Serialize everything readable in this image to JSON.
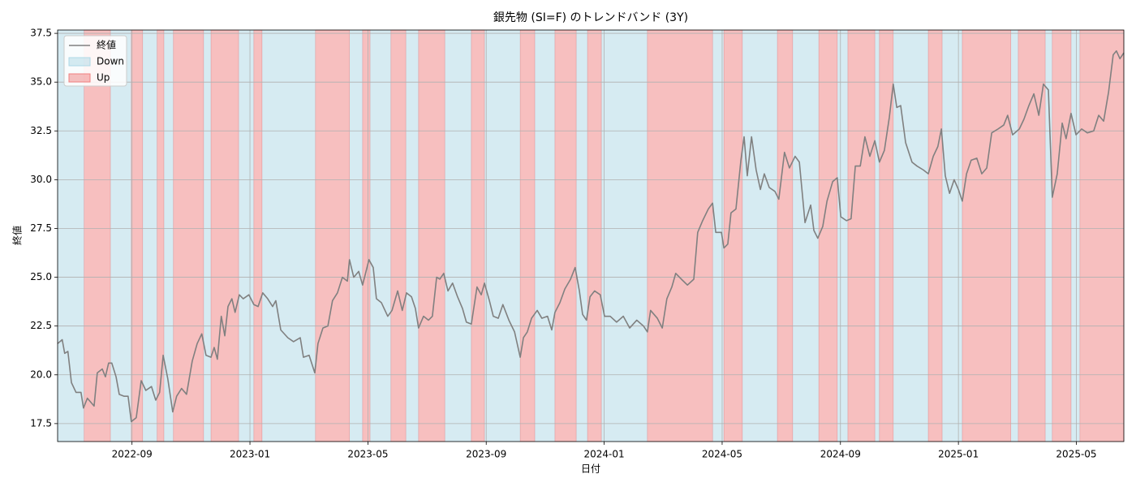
{
  "chart_data": {
    "type": "line",
    "title": "銀先物 (SI=F) のトレンドバンド (3Y)",
    "xlabel": "日付",
    "ylabel": "終値",
    "xlim": [
      2022.457,
      2025.467
    ],
    "ylim": [
      16.58,
      37.67
    ],
    "xticks": [
      {
        "value": 2022.667,
        "label": "2022-09"
      },
      {
        "value": 2023.0,
        "label": "2023-01"
      },
      {
        "value": 2023.333,
        "label": "2023-05"
      },
      {
        "value": 2023.667,
        "label": "2023-09"
      },
      {
        "value": 2024.0,
        "label": "2024-01"
      },
      {
        "value": 2024.333,
        "label": "2024-05"
      },
      {
        "value": 2024.667,
        "label": "2024-09"
      },
      {
        "value": 2025.0,
        "label": "2025-01"
      },
      {
        "value": 2025.333,
        "label": "2025-05"
      }
    ],
    "yticks": [
      {
        "value": 17.5,
        "label": "17.5"
      },
      {
        "value": 20,
        "label": "20.0"
      },
      {
        "value": 22.5,
        "label": "22.5"
      },
      {
        "value": 25,
        "label": "25.0"
      },
      {
        "value": 27.5,
        "label": "27.5"
      },
      {
        "value": 30,
        "label": "30.0"
      },
      {
        "value": 32.5,
        "label": "32.5"
      },
      {
        "value": 35,
        "label": "35.0"
      },
      {
        "value": 37.5,
        "label": "37.5"
      }
    ],
    "grid": true,
    "legend": "upper left",
    "series": [
      {
        "name": "終値",
        "color": "#808080",
        "x": [
          2022.457,
          2022.47,
          2022.477,
          2022.486,
          2022.496,
          2022.509,
          2022.523,
          2022.53,
          2022.541,
          2022.56,
          2022.569,
          2022.583,
          2022.592,
          2022.601,
          2022.61,
          2022.622,
          2022.631,
          2022.645,
          2022.656,
          2022.665,
          2022.679,
          2022.693,
          2022.706,
          2022.722,
          2022.734,
          2022.745,
          2022.755,
          2022.768,
          2022.782,
          2022.793,
          2022.807,
          2022.821,
          2022.837,
          2022.851,
          2022.864,
          2022.876,
          2022.89,
          2022.899,
          2022.908,
          2022.919,
          2022.929,
          2022.938,
          2022.949,
          2022.958,
          2022.97,
          2022.981,
          2022.997,
          2023.011,
          2023.023,
          2023.036,
          2023.05,
          2023.064,
          2023.073,
          2023.087,
          2023.107,
          2023.123,
          2023.142,
          2023.151,
          2023.167,
          2023.183,
          2023.192,
          2023.206,
          2023.22,
          2023.233,
          2023.247,
          2023.261,
          2023.275,
          2023.281,
          2023.293,
          2023.307,
          2023.318,
          2023.336,
          2023.348,
          2023.357,
          2023.371,
          2023.389,
          2023.401,
          2023.417,
          2023.43,
          2023.442,
          2023.456,
          2023.467,
          2023.476,
          2023.49,
          2023.504,
          2023.515,
          2023.527,
          2023.536,
          2023.547,
          2023.559,
          2023.572,
          2023.586,
          2023.6,
          2023.611,
          2023.625,
          2023.641,
          2023.653,
          2023.662,
          2023.676,
          2023.687,
          2023.701,
          2023.714,
          2023.731,
          2023.747,
          2023.763,
          2023.772,
          2023.783,
          2023.795,
          2023.811,
          2023.824,
          2023.84,
          2023.852,
          2023.861,
          2023.875,
          2023.889,
          2023.905,
          2023.918,
          2023.93,
          2023.939,
          2023.95,
          2023.96,
          2023.973,
          2023.989,
          2024.001,
          2024.017,
          2024.035,
          2024.054,
          2024.072,
          2024.092,
          2024.111,
          2024.122,
          2024.131,
          2024.15,
          2024.164,
          2024.177,
          2024.191,
          2024.202,
          2024.218,
          2024.235,
          2024.253,
          2024.264,
          2024.278,
          2024.294,
          2024.306,
          2024.315,
          2024.331,
          2024.338,
          2024.349,
          2024.358,
          2024.372,
          2024.386,
          2024.395,
          2024.404,
          2024.416,
          2024.429,
          2024.441,
          2024.452,
          2024.466,
          2024.482,
          2024.493,
          2024.509,
          2024.523,
          2024.539,
          2024.551,
          2024.567,
          2024.583,
          2024.592,
          2024.603,
          2024.617,
          2024.629,
          2024.645,
          2024.658,
          2024.668,
          2024.684,
          2024.697,
          2024.709,
          2024.723,
          2024.736,
          2024.75,
          2024.764,
          2024.777,
          2024.791,
          2024.805,
          2024.816,
          2024.826,
          2024.837,
          2024.851,
          2024.869,
          2024.883,
          2024.901,
          2024.915,
          2024.929,
          2024.942,
          2024.952,
          2024.963,
          2024.975,
          2024.988,
          2025.0,
          2025.011,
          2025.023,
          2025.036,
          2025.052,
          2025.066,
          2025.08,
          2025.094,
          2025.112,
          2025.128,
          2025.139,
          2025.153,
          2025.172,
          2025.185,
          2025.199,
          2025.213,
          2025.227,
          2025.24,
          2025.254,
          2025.265,
          2025.279,
          2025.293,
          2025.304,
          2025.318,
          2025.332,
          2025.348,
          2025.364,
          2025.382,
          2025.396,
          2025.41,
          2025.424,
          2025.437,
          2025.446,
          2025.456,
          2025.467
        ],
        "values": [
          21.6,
          21.8,
          21.1,
          21.2,
          19.6,
          19.1,
          19.1,
          18.3,
          18.8,
          18.4,
          20.1,
          20.3,
          19.9,
          20.6,
          20.6,
          19.9,
          19.0,
          18.9,
          18.9,
          17.6,
          17.8,
          19.7,
          19.2,
          19.4,
          18.7,
          19.1,
          21.0,
          19.8,
          18.1,
          18.9,
          19.3,
          19.0,
          20.7,
          21.6,
          22.1,
          21.0,
          20.9,
          21.4,
          20.8,
          23.0,
          22.0,
          23.5,
          23.9,
          23.2,
          24.1,
          23.9,
          24.1,
          23.6,
          23.5,
          24.2,
          23.9,
          23.5,
          23.8,
          22.3,
          21.9,
          21.7,
          21.9,
          20.9,
          21.0,
          20.1,
          21.6,
          22.4,
          22.5,
          23.8,
          24.2,
          25.0,
          24.8,
          25.9,
          25.0,
          25.3,
          24.6,
          25.9,
          25.5,
          23.9,
          23.7,
          23.0,
          23.3,
          24.3,
          23.3,
          24.2,
          24.0,
          23.4,
          22.4,
          23.0,
          22.8,
          23.0,
          25.0,
          24.9,
          25.2,
          24.3,
          24.7,
          24.0,
          23.4,
          22.7,
          22.6,
          24.5,
          24.1,
          24.7,
          23.8,
          23.0,
          22.9,
          23.6,
          22.8,
          22.2,
          20.9,
          21.9,
          22.2,
          22.9,
          23.3,
          22.9,
          23.0,
          22.3,
          23.2,
          23.7,
          24.4,
          24.9,
          25.5,
          24.3,
          23.1,
          22.8,
          24.0,
          24.3,
          24.1,
          23.0,
          23.0,
          22.7,
          23.0,
          22.4,
          22.8,
          22.5,
          22.2,
          23.3,
          22.9,
          22.4,
          23.9,
          24.5,
          25.2,
          24.9,
          24.6,
          24.9,
          27.3,
          27.9,
          28.5,
          28.8,
          27.3,
          27.3,
          26.5,
          26.7,
          28.3,
          28.5,
          31.0,
          32.2,
          30.2,
          32.2,
          30.5,
          29.5,
          30.3,
          29.6,
          29.4,
          29.0,
          31.4,
          30.6,
          31.2,
          30.9,
          27.8,
          28.7,
          27.4,
          27.0,
          27.6,
          28.9,
          29.9,
          30.1,
          28.1,
          27.9,
          28.0,
          30.7,
          30.7,
          32.2,
          31.2,
          32.0,
          30.9,
          31.5,
          33.2,
          34.9,
          33.7,
          33.8,
          31.9,
          30.9,
          30.7,
          30.5,
          30.3,
          31.2,
          31.7,
          32.6,
          30.2,
          29.3,
          30.0,
          29.5,
          28.9,
          30.3,
          31.0,
          31.1,
          30.3,
          30.6,
          32.4,
          32.6,
          32.8,
          33.3,
          32.3,
          32.6,
          33.1,
          33.8,
          34.4,
          33.3,
          34.9,
          34.6,
          29.1,
          30.3,
          32.9,
          32.1,
          33.4,
          32.3,
          32.6,
          32.4,
          32.5,
          33.3,
          33.0,
          34.5,
          36.4,
          36.6,
          36.2,
          36.5
        ]
      }
    ],
    "bands": [
      {
        "name": "Down",
        "color": "#add8e6",
        "intervals": [
          [
            2022.457,
            2022.532
          ],
          [
            2022.606,
            2022.665
          ],
          [
            2022.697,
            2022.738
          ],
          [
            2022.757,
            2022.784
          ],
          [
            2022.869,
            2022.89
          ],
          [
            2022.968,
            2023.011
          ],
          [
            2023.034,
            2023.185
          ],
          [
            2023.281,
            2023.318
          ],
          [
            2023.339,
            2023.398
          ],
          [
            2023.44,
            2023.476
          ],
          [
            2023.55,
            2023.625
          ],
          [
            2023.662,
            2023.763
          ],
          [
            2023.804,
            2023.861
          ],
          [
            2023.921,
            2023.953
          ],
          [
            2023.992,
            2024.122
          ],
          [
            2024.306,
            2024.338
          ],
          [
            2024.39,
            2024.489
          ],
          [
            2024.532,
            2024.606
          ],
          [
            2024.658,
            2024.688
          ],
          [
            2024.764,
            2024.777
          ],
          [
            2024.816,
            2024.915
          ],
          [
            2024.954,
            2025.011
          ],
          [
            2025.148,
            2025.169
          ],
          [
            2025.245,
            2025.265
          ],
          [
            2025.318,
            2025.343
          ]
        ]
      },
      {
        "name": "Up",
        "color": "#f08080",
        "intervals": [
          [
            2022.532,
            2022.606
          ],
          [
            2022.665,
            2022.697
          ],
          [
            2022.738,
            2022.757
          ],
          [
            2022.784,
            2022.869
          ],
          [
            2022.89,
            2022.968
          ],
          [
            2023.011,
            2023.034
          ],
          [
            2023.185,
            2023.281
          ],
          [
            2023.318,
            2023.339
          ],
          [
            2023.398,
            2023.44
          ],
          [
            2023.476,
            2023.55
          ],
          [
            2023.625,
            2023.662
          ],
          [
            2023.763,
            2023.804
          ],
          [
            2023.861,
            2023.921
          ],
          [
            2023.953,
            2023.992
          ],
          [
            2024.122,
            2024.306
          ],
          [
            2024.338,
            2024.39
          ],
          [
            2024.489,
            2024.532
          ],
          [
            2024.606,
            2024.658
          ],
          [
            2024.688,
            2024.764
          ],
          [
            2024.777,
            2024.816
          ],
          [
            2024.915,
            2024.954
          ],
          [
            2025.011,
            2025.148
          ],
          [
            2025.169,
            2025.245
          ],
          [
            2025.265,
            2025.318
          ],
          [
            2025.343,
            2025.467
          ]
        ]
      }
    ]
  }
}
